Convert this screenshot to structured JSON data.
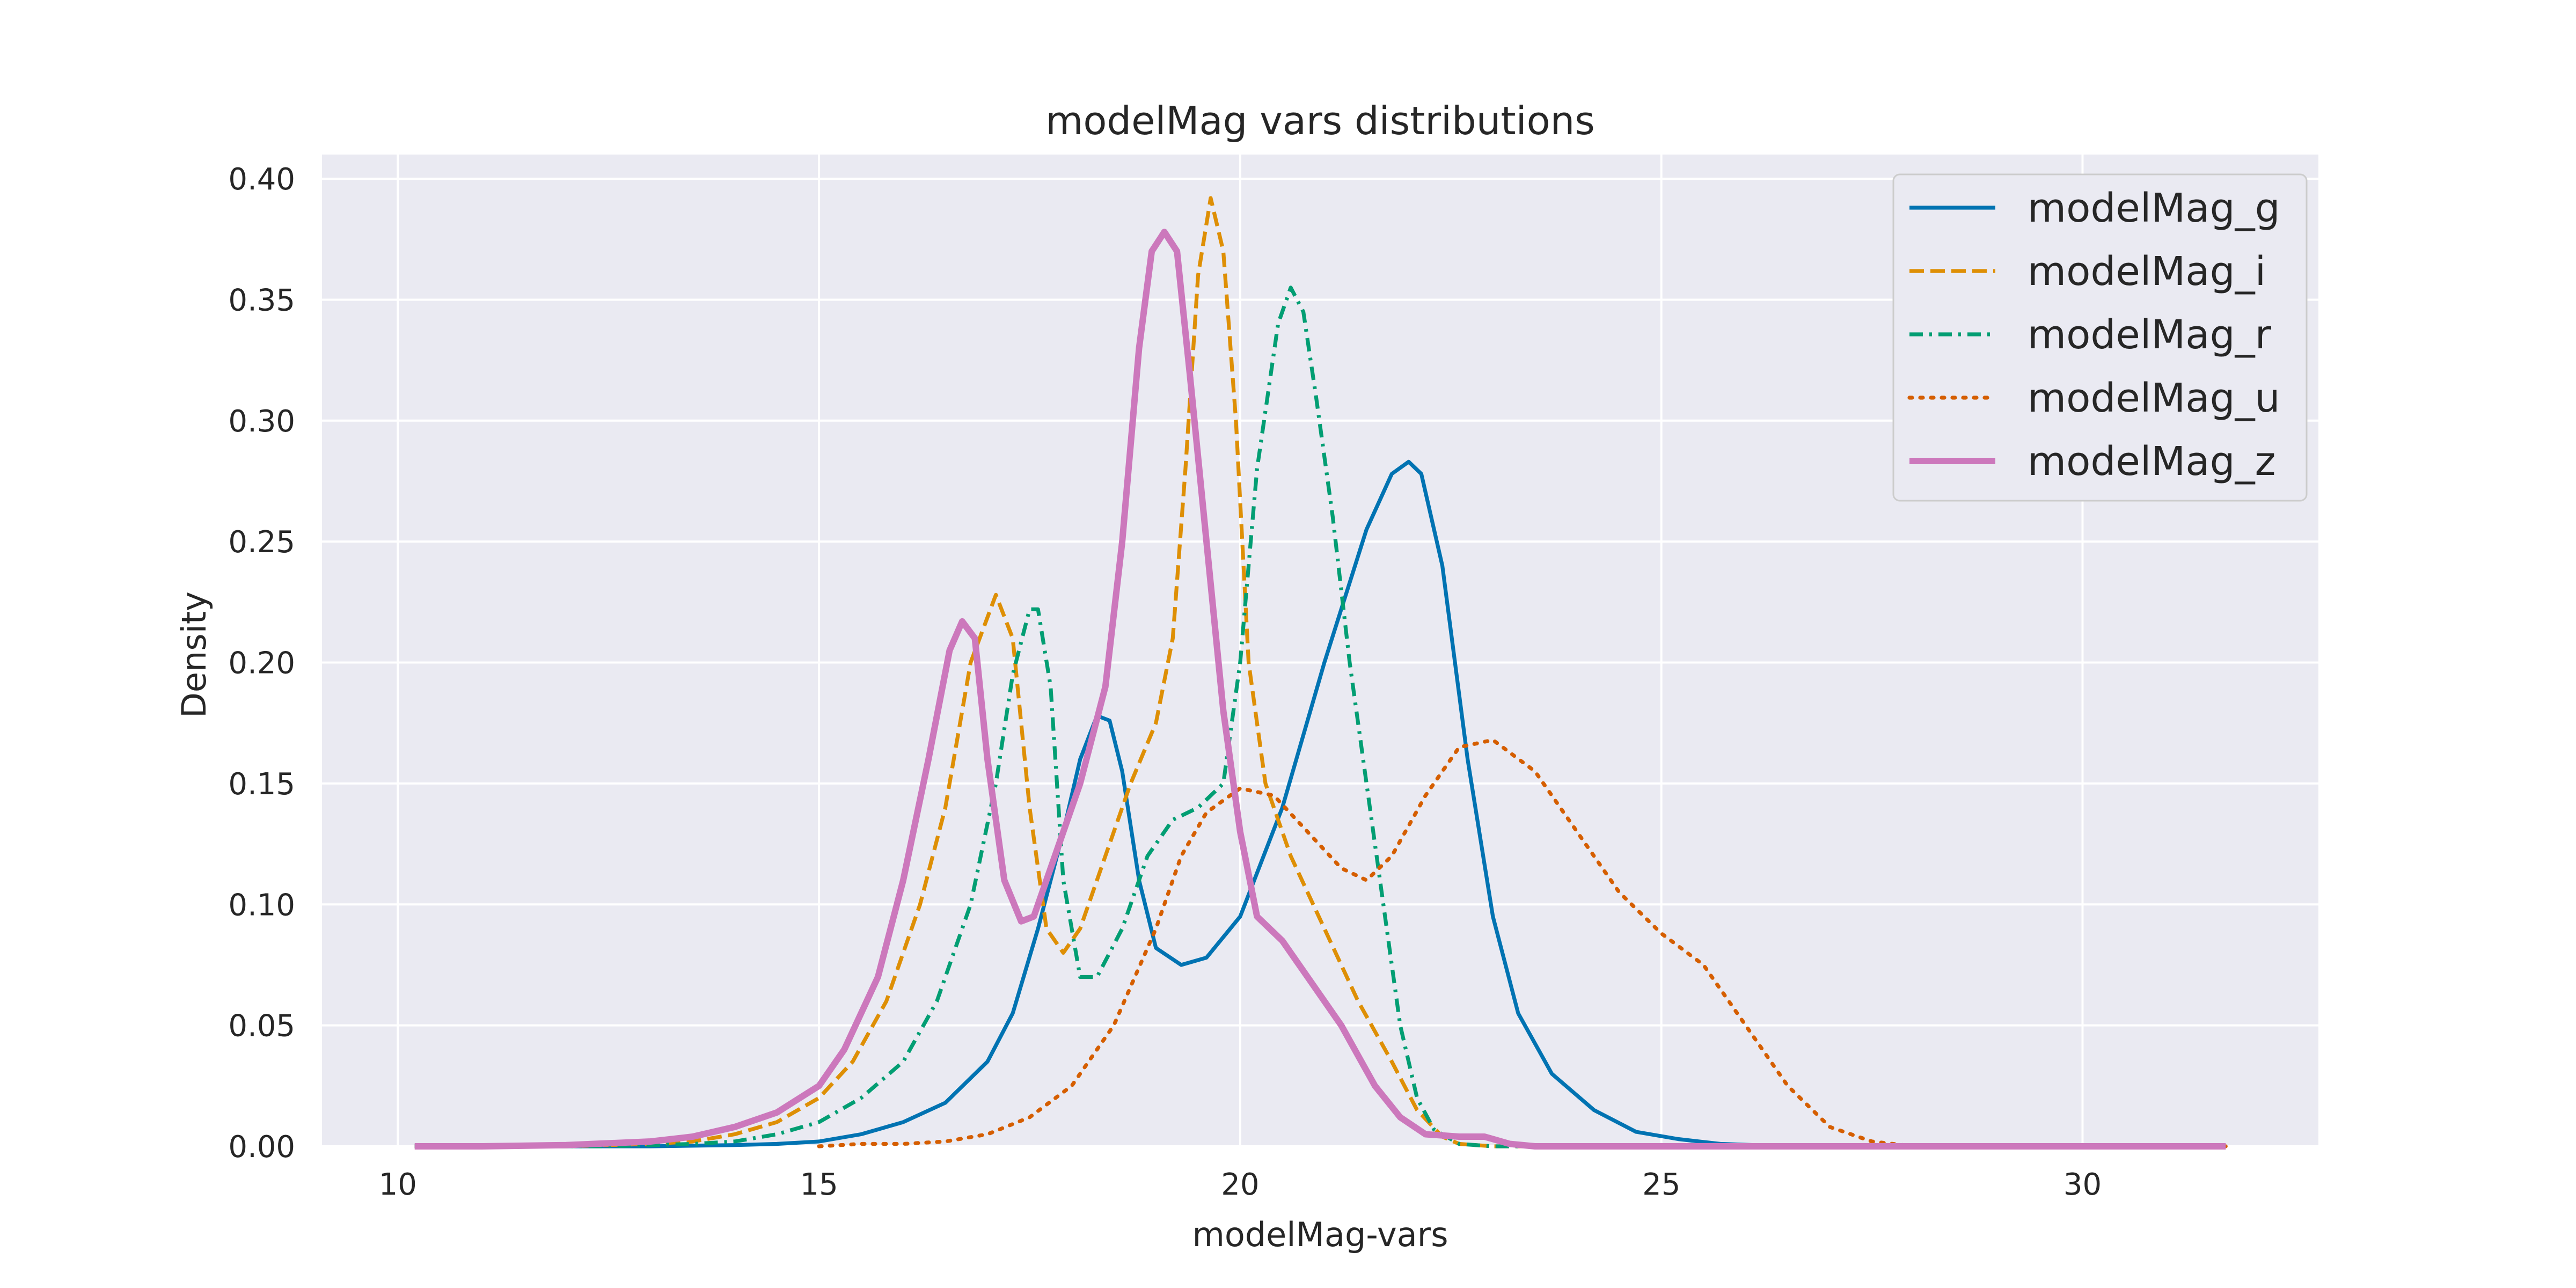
{
  "chart_data": {
    "type": "line",
    "title": "modelMag vars distributions",
    "xlabel": "modelMag-vars",
    "ylabel": "Density",
    "xlim": [
      9.1,
      32.8
    ],
    "ylim": [
      0,
      0.41
    ],
    "xticks": [
      10,
      15,
      20,
      25,
      30
    ],
    "yticks": [
      0.0,
      0.05,
      0.1,
      0.15,
      0.2,
      0.25,
      0.3,
      0.35,
      0.4
    ],
    "ytick_labels": [
      "0.00",
      "0.05",
      "0.10",
      "0.15",
      "0.20",
      "0.25",
      "0.30",
      "0.35",
      "0.40"
    ],
    "grid": true,
    "legend_position": "top-right",
    "colors": {
      "background": "#eaeaf2",
      "grid": "#ffffff",
      "text": "#262626"
    },
    "series": [
      {
        "name": "modelMag_g",
        "color": "#0173b2",
        "dash": "solid",
        "width": 3.0,
        "points": [
          [
            10.2,
            0
          ],
          [
            13,
            0
          ],
          [
            14,
            0.0005
          ],
          [
            14.5,
            0.001
          ],
          [
            15,
            0.002
          ],
          [
            15.5,
            0.005
          ],
          [
            16,
            0.01
          ],
          [
            16.5,
            0.018
          ],
          [
            17,
            0.035
          ],
          [
            17.3,
            0.055
          ],
          [
            17.6,
            0.09
          ],
          [
            17.9,
            0.13
          ],
          [
            18.1,
            0.16
          ],
          [
            18.3,
            0.178
          ],
          [
            18.45,
            0.176
          ],
          [
            18.6,
            0.155
          ],
          [
            18.8,
            0.11
          ],
          [
            19,
            0.082
          ],
          [
            19.3,
            0.075
          ],
          [
            19.6,
            0.078
          ],
          [
            20,
            0.095
          ],
          [
            20.5,
            0.14
          ],
          [
            21,
            0.2
          ],
          [
            21.5,
            0.255
          ],
          [
            21.8,
            0.278
          ],
          [
            22,
            0.283
          ],
          [
            22.15,
            0.278
          ],
          [
            22.4,
            0.24
          ],
          [
            22.7,
            0.16
          ],
          [
            23,
            0.095
          ],
          [
            23.3,
            0.055
          ],
          [
            23.7,
            0.03
          ],
          [
            24.2,
            0.015
          ],
          [
            24.7,
            0.006
          ],
          [
            25.2,
            0.003
          ],
          [
            25.7,
            0.001
          ],
          [
            26.5,
            0
          ],
          [
            29,
            0
          ],
          [
            31.7,
            0
          ]
        ]
      },
      {
        "name": "modelMag_i",
        "color": "#de8f05",
        "dash": "dashed",
        "width": 3.0,
        "points": [
          [
            10.2,
            0
          ],
          [
            12,
            0
          ],
          [
            13,
            0.001
          ],
          [
            13.5,
            0.002
          ],
          [
            14,
            0.005
          ],
          [
            14.5,
            0.01
          ],
          [
            15,
            0.02
          ],
          [
            15.4,
            0.035
          ],
          [
            15.8,
            0.06
          ],
          [
            16.2,
            0.1
          ],
          [
            16.5,
            0.14
          ],
          [
            16.8,
            0.2
          ],
          [
            17.1,
            0.228
          ],
          [
            17.3,
            0.21
          ],
          [
            17.5,
            0.14
          ],
          [
            17.7,
            0.09
          ],
          [
            17.9,
            0.08
          ],
          [
            18.1,
            0.09
          ],
          [
            18.4,
            0.12
          ],
          [
            18.7,
            0.15
          ],
          [
            19,
            0.175
          ],
          [
            19.2,
            0.21
          ],
          [
            19.35,
            0.28
          ],
          [
            19.5,
            0.36
          ],
          [
            19.65,
            0.392
          ],
          [
            19.8,
            0.37
          ],
          [
            19.95,
            0.3
          ],
          [
            20.1,
            0.2
          ],
          [
            20.3,
            0.15
          ],
          [
            20.6,
            0.12
          ],
          [
            21,
            0.09
          ],
          [
            21.4,
            0.06
          ],
          [
            21.8,
            0.035
          ],
          [
            22.1,
            0.015
          ],
          [
            22.4,
            0.004
          ],
          [
            22.6,
            0.001
          ],
          [
            23,
            0
          ],
          [
            29,
            0
          ],
          [
            31.7,
            0
          ]
        ]
      },
      {
        "name": "modelMag_r",
        "color": "#029e73",
        "dash": "dashdot",
        "width": 3.0,
        "points": [
          [
            10.2,
            0
          ],
          [
            12.5,
            0
          ],
          [
            13.5,
            0.001
          ],
          [
            14,
            0.002
          ],
          [
            14.5,
            0.005
          ],
          [
            15,
            0.01
          ],
          [
            15.5,
            0.02
          ],
          [
            16,
            0.035
          ],
          [
            16.4,
            0.06
          ],
          [
            16.8,
            0.1
          ],
          [
            17.1,
            0.15
          ],
          [
            17.3,
            0.195
          ],
          [
            17.5,
            0.222
          ],
          [
            17.6,
            0.222
          ],
          [
            17.75,
            0.19
          ],
          [
            17.9,
            0.11
          ],
          [
            18.1,
            0.07
          ],
          [
            18.3,
            0.07
          ],
          [
            18.6,
            0.09
          ],
          [
            18.9,
            0.12
          ],
          [
            19.2,
            0.135
          ],
          [
            19.5,
            0.14
          ],
          [
            19.8,
            0.15
          ],
          [
            20,
            0.2
          ],
          [
            20.2,
            0.28
          ],
          [
            20.45,
            0.34
          ],
          [
            20.6,
            0.355
          ],
          [
            20.75,
            0.345
          ],
          [
            20.9,
            0.31
          ],
          [
            21.1,
            0.26
          ],
          [
            21.3,
            0.2
          ],
          [
            21.5,
            0.15
          ],
          [
            21.7,
            0.1
          ],
          [
            21.9,
            0.05
          ],
          [
            22.1,
            0.02
          ],
          [
            22.3,
            0.007
          ],
          [
            22.6,
            0.001
          ],
          [
            23,
            0
          ],
          [
            29,
            0
          ],
          [
            31.7,
            0
          ]
        ]
      },
      {
        "name": "modelMag_u",
        "color": "#d55e00",
        "dash": "dotted",
        "width": 3.0,
        "points": [
          [
            15,
            0
          ],
          [
            15.5,
            0.001
          ],
          [
            16,
            0.001
          ],
          [
            16.5,
            0.002
          ],
          [
            17,
            0.005
          ],
          [
            17.5,
            0.012
          ],
          [
            18,
            0.025
          ],
          [
            18.5,
            0.05
          ],
          [
            19,
            0.09
          ],
          [
            19.3,
            0.12
          ],
          [
            19.6,
            0.138
          ],
          [
            20,
            0.148
          ],
          [
            20.4,
            0.145
          ],
          [
            20.8,
            0.13
          ],
          [
            21.2,
            0.115
          ],
          [
            21.5,
            0.11
          ],
          [
            21.8,
            0.12
          ],
          [
            22.2,
            0.145
          ],
          [
            22.6,
            0.165
          ],
          [
            23,
            0.168
          ],
          [
            23.5,
            0.155
          ],
          [
            24,
            0.13
          ],
          [
            24.5,
            0.105
          ],
          [
            25,
            0.088
          ],
          [
            25.5,
            0.075
          ],
          [
            26,
            0.05
          ],
          [
            26.5,
            0.025
          ],
          [
            27,
            0.008
          ],
          [
            27.5,
            0.002
          ],
          [
            28,
            0
          ],
          [
            29,
            0
          ],
          [
            31.7,
            0
          ]
        ]
      },
      {
        "name": "modelMag_z",
        "color": "#cc78bc",
        "dash": "solid",
        "width": 5.0,
        "points": [
          [
            10.2,
            0
          ],
          [
            11,
            0
          ],
          [
            12,
            0.0005
          ],
          [
            13,
            0.002
          ],
          [
            13.5,
            0.004
          ],
          [
            14,
            0.008
          ],
          [
            14.5,
            0.014
          ],
          [
            15,
            0.025
          ],
          [
            15.3,
            0.04
          ],
          [
            15.7,
            0.07
          ],
          [
            16,
            0.11
          ],
          [
            16.3,
            0.16
          ],
          [
            16.55,
            0.205
          ],
          [
            16.7,
            0.217
          ],
          [
            16.85,
            0.21
          ],
          [
            17,
            0.16
          ],
          [
            17.2,
            0.11
          ],
          [
            17.4,
            0.093
          ],
          [
            17.55,
            0.095
          ],
          [
            17.8,
            0.12
          ],
          [
            18.1,
            0.15
          ],
          [
            18.4,
            0.19
          ],
          [
            18.6,
            0.25
          ],
          [
            18.8,
            0.33
          ],
          [
            18.95,
            0.37
          ],
          [
            19.1,
            0.378
          ],
          [
            19.25,
            0.37
          ],
          [
            19.4,
            0.32
          ],
          [
            19.6,
            0.25
          ],
          [
            19.8,
            0.18
          ],
          [
            20,
            0.13
          ],
          [
            20.2,
            0.095
          ],
          [
            20.5,
            0.085
          ],
          [
            20.8,
            0.07
          ],
          [
            21.2,
            0.05
          ],
          [
            21.6,
            0.025
          ],
          [
            21.9,
            0.012
          ],
          [
            22.2,
            0.005
          ],
          [
            22.6,
            0.004
          ],
          [
            22.9,
            0.004
          ],
          [
            23.2,
            0.001
          ],
          [
            23.5,
            0
          ],
          [
            29,
            0
          ],
          [
            31.7,
            0
          ]
        ]
      }
    ]
  }
}
